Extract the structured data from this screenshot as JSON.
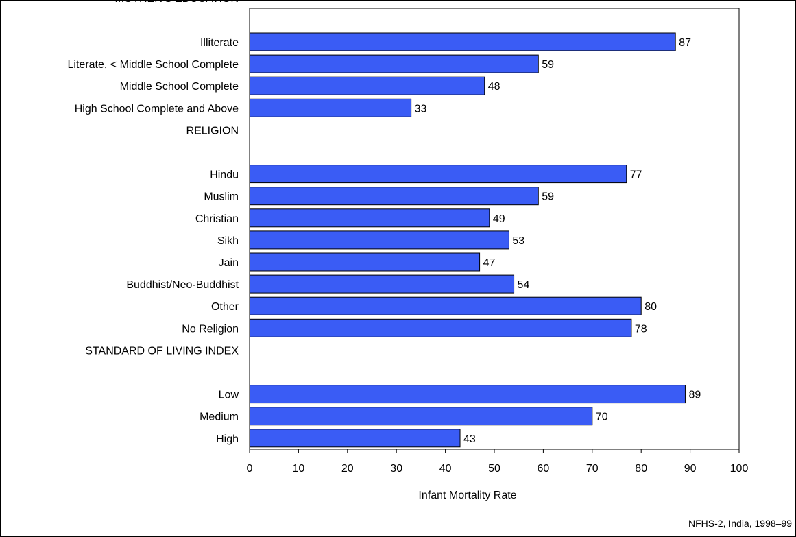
{
  "chart_data": {
    "type": "bar",
    "orientation": "horizontal",
    "xlabel": "Infant Mortality Rate",
    "xlim": [
      0,
      100
    ],
    "xticks": [
      0,
      10,
      20,
      30,
      40,
      50,
      60,
      70,
      80,
      90,
      100
    ],
    "bar_color": "#3a5cf5",
    "groups": [
      {
        "name": "MOTHER'S EDUCATION",
        "categories": [
          "Illiterate",
          "Literate, < Middle School Complete",
          "Middle School Complete",
          "High School Complete and Above"
        ],
        "values": [
          87,
          59,
          48,
          33
        ]
      },
      {
        "name": "RELIGION",
        "categories": [
          "Hindu",
          "Muslim",
          "Christian",
          "Sikh",
          "Jain",
          "Buddhist/Neo-Buddhist",
          "Other",
          "No Religion"
        ],
        "values": [
          77,
          59,
          49,
          53,
          47,
          54,
          80,
          78
        ]
      },
      {
        "name": "STANDARD OF LIVING INDEX",
        "categories": [
          "Low",
          "Medium",
          "High"
        ],
        "values": [
          89,
          70,
          43
        ]
      }
    ]
  },
  "source_note": "NFHS-2, India, 1998–99"
}
